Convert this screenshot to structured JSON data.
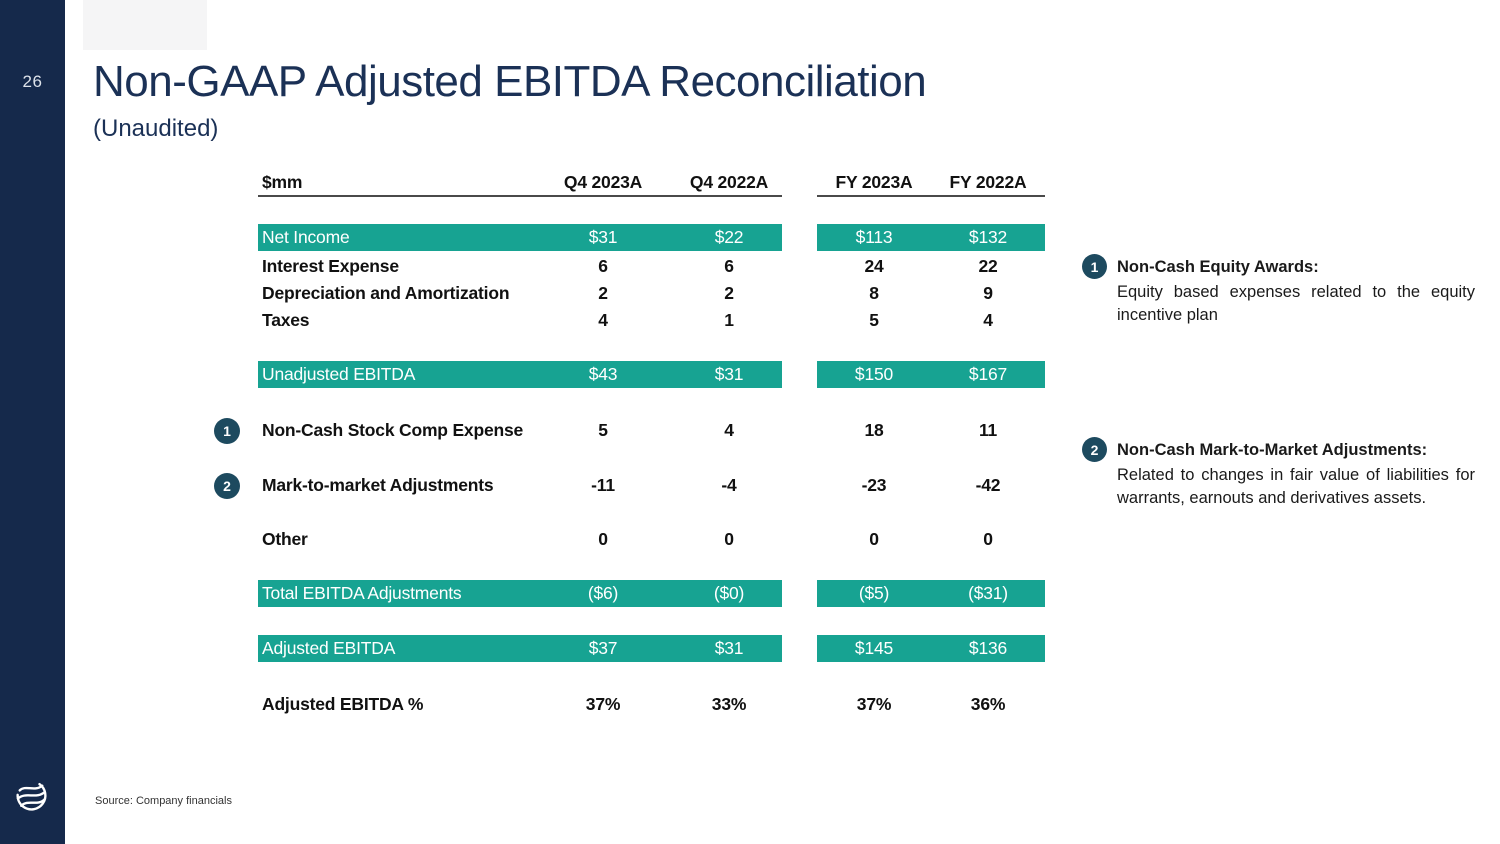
{
  "page": {
    "number": "26",
    "title": "Non-GAAP Adjusted EBITDA Reconciliation",
    "subtitle": "(Unaudited)",
    "source": "Source: Company financials",
    "logo": "swirl-globe-logo"
  },
  "colors": {
    "sidebar_navy": "#15294b",
    "title_navy": "#1b3156",
    "highlight_teal": "#17a392",
    "marker_circle": "#1d4a5f",
    "header_rule": "#4a4a4a"
  },
  "chart_data": {
    "type": "table",
    "title": "Non-GAAP Adjusted EBITDA Reconciliation (Unaudited)",
    "unit_header": "$mm",
    "columns": [
      "Q4 2023A",
      "Q4 2022A",
      "FY 2023A",
      "FY 2022A"
    ],
    "rows": [
      {
        "label": "Net Income",
        "values": [
          "$31",
          "$22",
          "$113",
          "$132"
        ],
        "style": "highlight"
      },
      {
        "label": "Interest Expense",
        "values": [
          "6",
          "6",
          "24",
          "22"
        ],
        "style": "normal"
      },
      {
        "label": "Depreciation and Amortization",
        "values": [
          "2",
          "2",
          "8",
          "9"
        ],
        "style": "normal"
      },
      {
        "label": "Taxes",
        "values": [
          "4",
          "1",
          "5",
          "4"
        ],
        "style": "normal"
      },
      {
        "label": "Unadjusted EBITDA",
        "values": [
          "$43",
          "$31",
          "$150",
          "$167"
        ],
        "style": "highlight"
      },
      {
        "label": "Non-Cash Stock Comp Expense",
        "values": [
          "5",
          "4",
          "18",
          "11"
        ],
        "style": "normal",
        "marker": "1"
      },
      {
        "label": "Mark-to-market Adjustments",
        "values": [
          "-11",
          "-4",
          "-23",
          "-42"
        ],
        "style": "normal",
        "marker": "2"
      },
      {
        "label": "Other",
        "values": [
          "0",
          "0",
          "0",
          "0"
        ],
        "style": "normal"
      },
      {
        "label": "Total EBITDA Adjustments",
        "values": [
          "($6)",
          "($0)",
          "($5)",
          "($31)"
        ],
        "style": "highlight"
      },
      {
        "label": "Adjusted EBITDA",
        "values": [
          "$37",
          "$31",
          "$145",
          "$136"
        ],
        "style": "highlight"
      },
      {
        "label": "Adjusted EBITDA %",
        "values": [
          "37%",
          "33%",
          "37%",
          "36%"
        ],
        "style": "bold"
      }
    ]
  },
  "annotations": [
    {
      "marker": "1",
      "title": "Non-Cash Equity Awards:",
      "body": "Equity based expenses related to the equity incentive plan"
    },
    {
      "marker": "2",
      "title": "Non-Cash Mark-to-Market Adjustments:",
      "body": "Related to changes in fair value of liabilities for warrants, earnouts and derivatives assets."
    }
  ]
}
